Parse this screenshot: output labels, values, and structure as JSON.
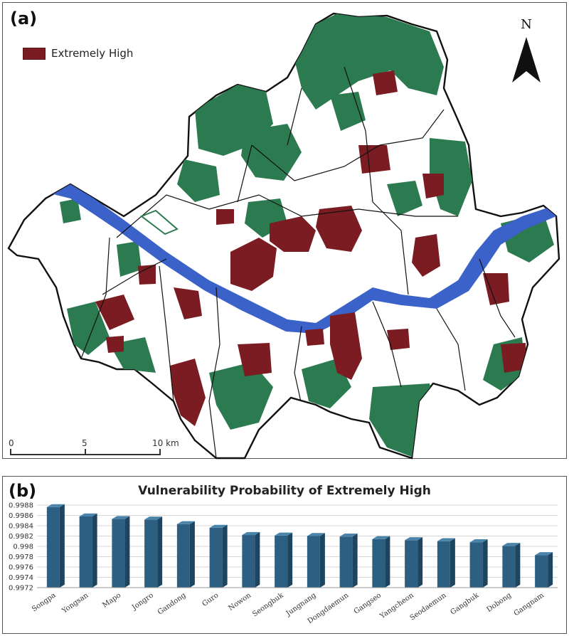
{
  "panel_a": {
    "label": "(a)",
    "legend_label": "Extremely High",
    "north_label": "N",
    "scale_ticks": [
      "0",
      "5",
      "10 km"
    ]
  },
  "panel_b": {
    "label": "(b)"
  },
  "colors": {
    "extremely_high": "#7a1c22",
    "forest": "#2c7a4f",
    "river": "#3a62c9",
    "bar_front": "#2c5f82",
    "bar_side": "#1d4560",
    "bar_top": "#4b84aa"
  },
  "chart_data": {
    "type": "bar",
    "title": "Vulnerability Probability of Extremely High",
    "xlabel": "",
    "ylabel": "",
    "categories": [
      "Songpa",
      "Yongsan",
      "Mapo",
      "Jongro",
      "Gandong",
      "Guro",
      "Nowon",
      "Seongbuk",
      "Jungnang",
      "Dongdaemun",
      "Gangseo",
      "Yangcheon",
      "Seodaemun",
      "Gangbuk",
      "Dobong",
      "Gangnam"
    ],
    "values": [
      0.99876,
      0.99858,
      0.99853,
      0.99852,
      0.99843,
      0.99836,
      0.99822,
      0.99821,
      0.9982,
      0.99819,
      0.99814,
      0.99812,
      0.9981,
      0.99808,
      0.99801,
      0.99783
    ],
    "ylim": [
      0.9972,
      0.9988
    ],
    "yticks": [
      "0.9988",
      "0.9986",
      "0.9984",
      "0.9982",
      "0.998",
      "0.9978",
      "0.9976",
      "0.9974",
      "0.9972"
    ],
    "grid": true,
    "legend": "none"
  }
}
